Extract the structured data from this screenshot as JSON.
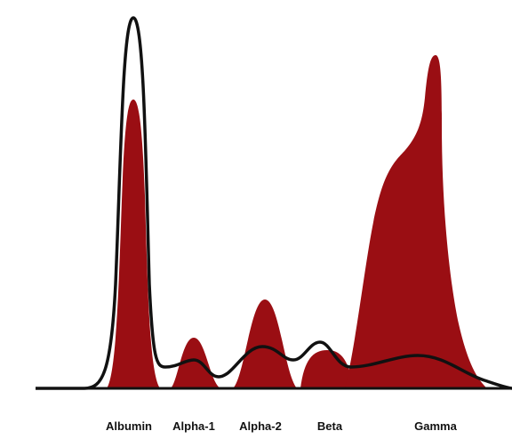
{
  "labels": [
    "Albumin",
    "Alpha-1",
    "Alpha-2",
    "Beta",
    "Gamma"
  ]
}
